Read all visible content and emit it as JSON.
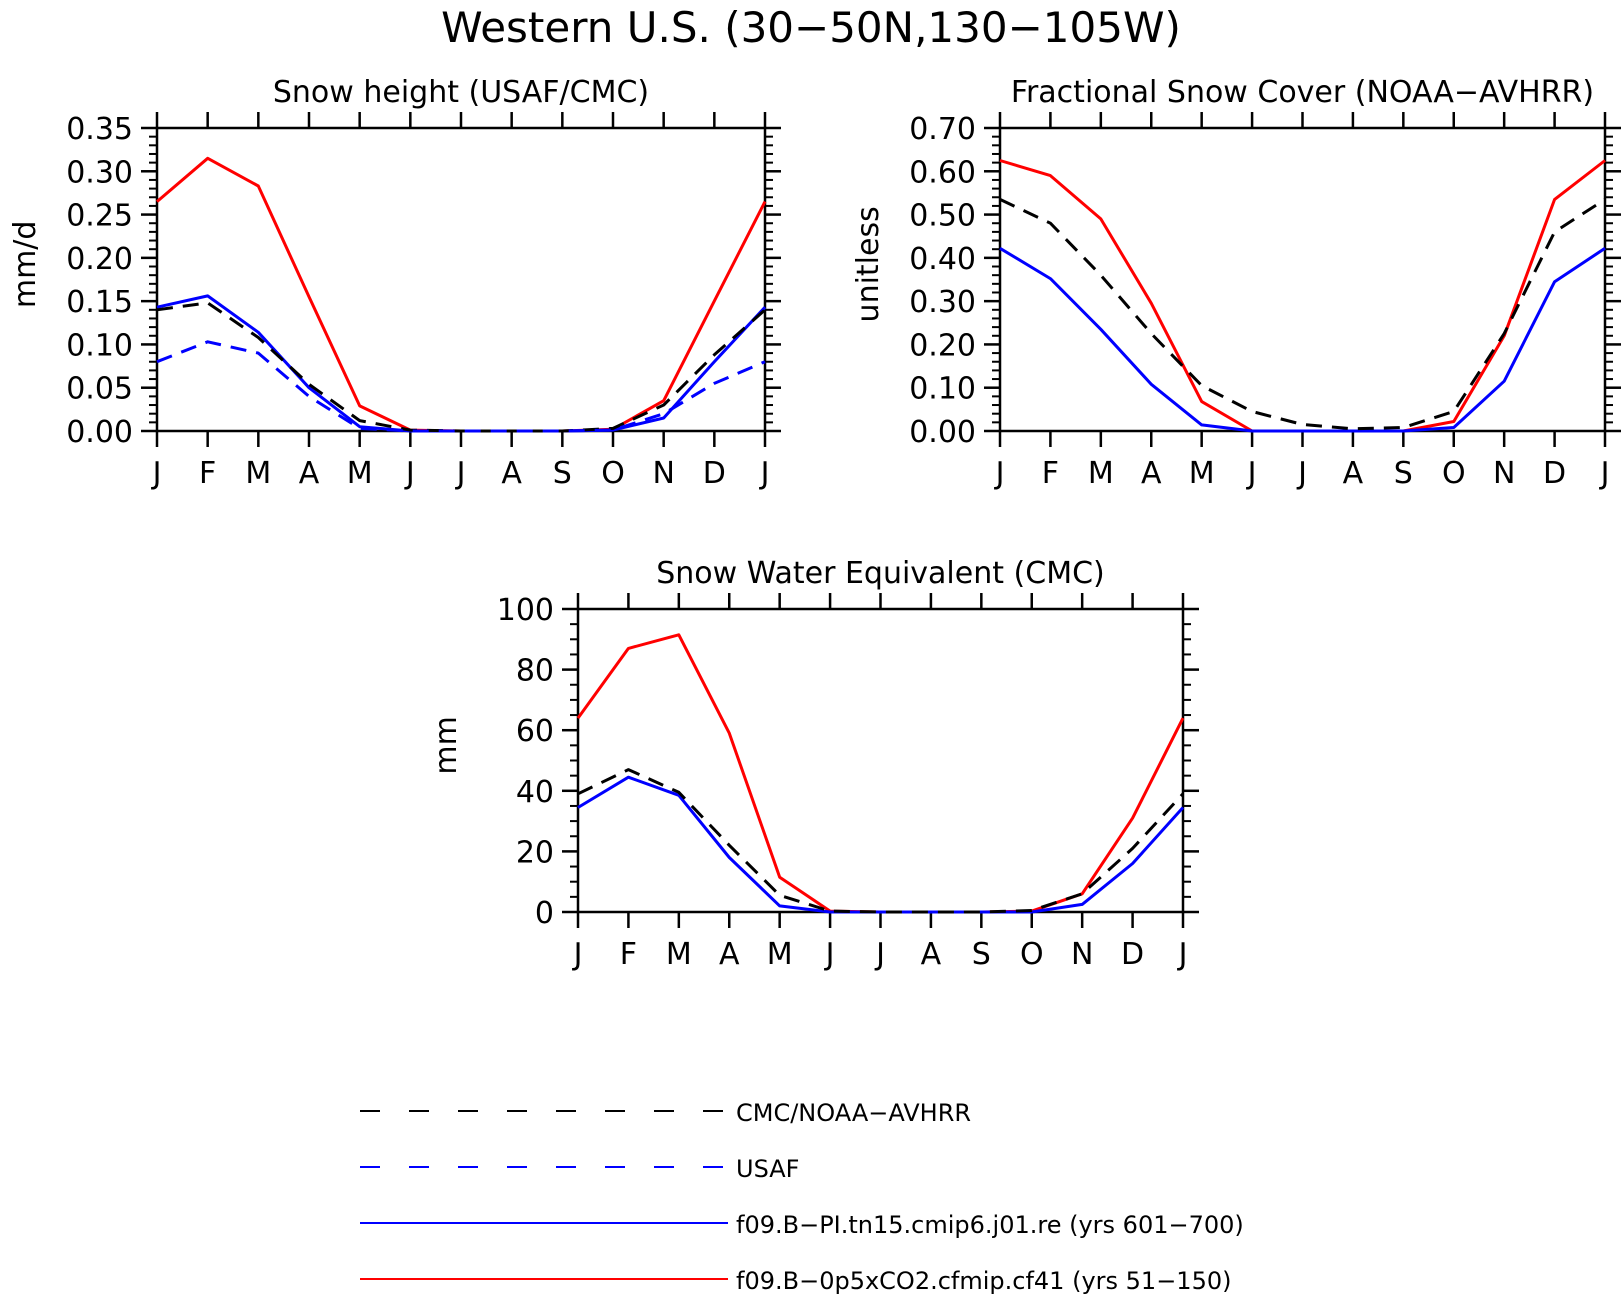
{
  "figure": {
    "title": "Western U.S. (30−50N,130−105W)"
  },
  "colors": {
    "obs": "#000000",
    "usaf": "#0000ff",
    "pi": "#0000ff",
    "co2": "#ff0000"
  },
  "legend": {
    "placement": "bottom-center",
    "entries": [
      {
        "label": "CMC/NOAA−AVHRR",
        "color": "#000000",
        "style": "dashed"
      },
      {
        "label": "USAF",
        "color": "#0000ff",
        "style": "dashed"
      },
      {
        "label": "f09.B−PI.tn15.cmip6.j01.re (yrs 601−700)",
        "color": "#0000ff",
        "style": "solid"
      },
      {
        "label": "f09.B−0p5xCO2.cfmip.cf41 (yrs 51−150)",
        "color": "#ff0000",
        "style": "solid"
      }
    ]
  },
  "chart_data": [
    {
      "type": "line",
      "title": "Snow height (USAF/CMC)",
      "xlabel": "",
      "ylabel": "mm/d",
      "ylim": [
        0,
        0.35
      ],
      "yticks": [
        0.0,
        0.05,
        0.1,
        0.15,
        0.2,
        0.25,
        0.3,
        0.35
      ],
      "ytick_labels": [
        "0.00",
        "0.05",
        "0.10",
        "0.15",
        "0.20",
        "0.25",
        "0.30",
        "0.35"
      ],
      "categories": [
        "J",
        "F",
        "M",
        "A",
        "M",
        "J",
        "J",
        "A",
        "S",
        "O",
        "N",
        "D",
        "J"
      ],
      "grid": false,
      "series": [
        {
          "name": "f09.B−0p5xCO2.cfmip.cf41 (yrs 51−150)",
          "style": "solid",
          "color": "#ff0000",
          "values": [
            0.265,
            0.315,
            0.283,
            0.155,
            0.029,
            0.001,
            0.0,
            0.0,
            0.0,
            0.002,
            0.035,
            0.15,
            0.265
          ]
        },
        {
          "name": "f09.B−PI.tn15.cmip6.j01.re (yrs 601−700)",
          "style": "solid",
          "color": "#0000ff",
          "values": [
            0.143,
            0.156,
            0.114,
            0.05,
            0.005,
            0.0,
            0.0,
            0.0,
            0.0,
            0.001,
            0.015,
            0.08,
            0.143
          ]
        },
        {
          "name": "CMC/NOAA−AVHRR",
          "style": "dashed",
          "color": "#000000",
          "values": [
            0.14,
            0.148,
            0.108,
            0.054,
            0.012,
            0.001,
            0.0,
            0.0,
            0.0,
            0.003,
            0.03,
            0.088,
            0.14
          ]
        },
        {
          "name": "USAF",
          "style": "dashed",
          "color": "#0000ff",
          "values": [
            0.08,
            0.103,
            0.09,
            0.04,
            0.003,
            0.0,
            0.0,
            0.0,
            0.0,
            0.001,
            0.02,
            0.055,
            0.08
          ]
        }
      ]
    },
    {
      "type": "line",
      "title": "Fractional Snow Cover (NOAA−AVHRR)",
      "xlabel": "",
      "ylabel": "unitless",
      "ylim": [
        0,
        0.7
      ],
      "yticks": [
        0.0,
        0.1,
        0.2,
        0.3,
        0.4,
        0.5,
        0.6,
        0.7
      ],
      "ytick_labels": [
        "0.00",
        "0.10",
        "0.20",
        "0.30",
        "0.40",
        "0.50",
        "0.60",
        "0.70"
      ],
      "categories": [
        "J",
        "F",
        "M",
        "A",
        "M",
        "J",
        "J",
        "A",
        "S",
        "O",
        "N",
        "D",
        "J"
      ],
      "grid": false,
      "series": [
        {
          "name": "f09.B−0p5xCO2.cfmip.cf41 (yrs 51−150)",
          "style": "solid",
          "color": "#ff0000",
          "values": [
            0.625,
            0.59,
            0.49,
            0.295,
            0.068,
            0.0,
            0.0,
            0.0,
            0.0,
            0.022,
            0.22,
            0.535,
            0.625
          ]
        },
        {
          "name": "f09.B−PI.tn15.cmip6.j01.re (yrs 601−700)",
          "style": "solid",
          "color": "#0000ff",
          "values": [
            0.422,
            0.352,
            0.235,
            0.108,
            0.014,
            0.0,
            0.0,
            0.0,
            0.0,
            0.008,
            0.115,
            0.345,
            0.422
          ]
        },
        {
          "name": "CMC/NOAA−AVHRR",
          "style": "dashed",
          "color": "#000000",
          "values": [
            0.535,
            0.48,
            0.36,
            0.225,
            0.105,
            0.045,
            0.015,
            0.005,
            0.008,
            0.045,
            0.225,
            0.46,
            0.535
          ]
        }
      ]
    },
    {
      "type": "line",
      "title": "Snow Water Equivalent (CMC)",
      "xlabel": "",
      "ylabel": "mm",
      "ylim": [
        0,
        100
      ],
      "yticks": [
        0,
        20,
        40,
        60,
        80,
        100
      ],
      "ytick_labels": [
        "0",
        "20",
        "40",
        "60",
        "80",
        "100"
      ],
      "categories": [
        "J",
        "F",
        "M",
        "A",
        "M",
        "J",
        "J",
        "A",
        "S",
        "O",
        "N",
        "D",
        "J"
      ],
      "grid": false,
      "series": [
        {
          "name": "f09.B−0p5xCO2.cfmip.cf41 (yrs 51−150)",
          "style": "solid",
          "color": "#ff0000",
          "values": [
            64,
            87,
            91.5,
            59,
            11.5,
            0.3,
            0,
            0,
            0,
            0.3,
            6,
            31,
            64
          ]
        },
        {
          "name": "f09.B−PI.tn15.cmip6.j01.re (yrs 601−700)",
          "style": "solid",
          "color": "#0000ff",
          "values": [
            34.5,
            44.5,
            38.5,
            18,
            2,
            0,
            0,
            0,
            0,
            0,
            2.5,
            16,
            34.5
          ]
        },
        {
          "name": "CMC/NOAA−AVHRR",
          "style": "dashed",
          "color": "#000000",
          "values": [
            39,
            47,
            39.5,
            22,
            5.5,
            0.3,
            0,
            0,
            0,
            0.5,
            6,
            21,
            39
          ]
        }
      ]
    }
  ]
}
